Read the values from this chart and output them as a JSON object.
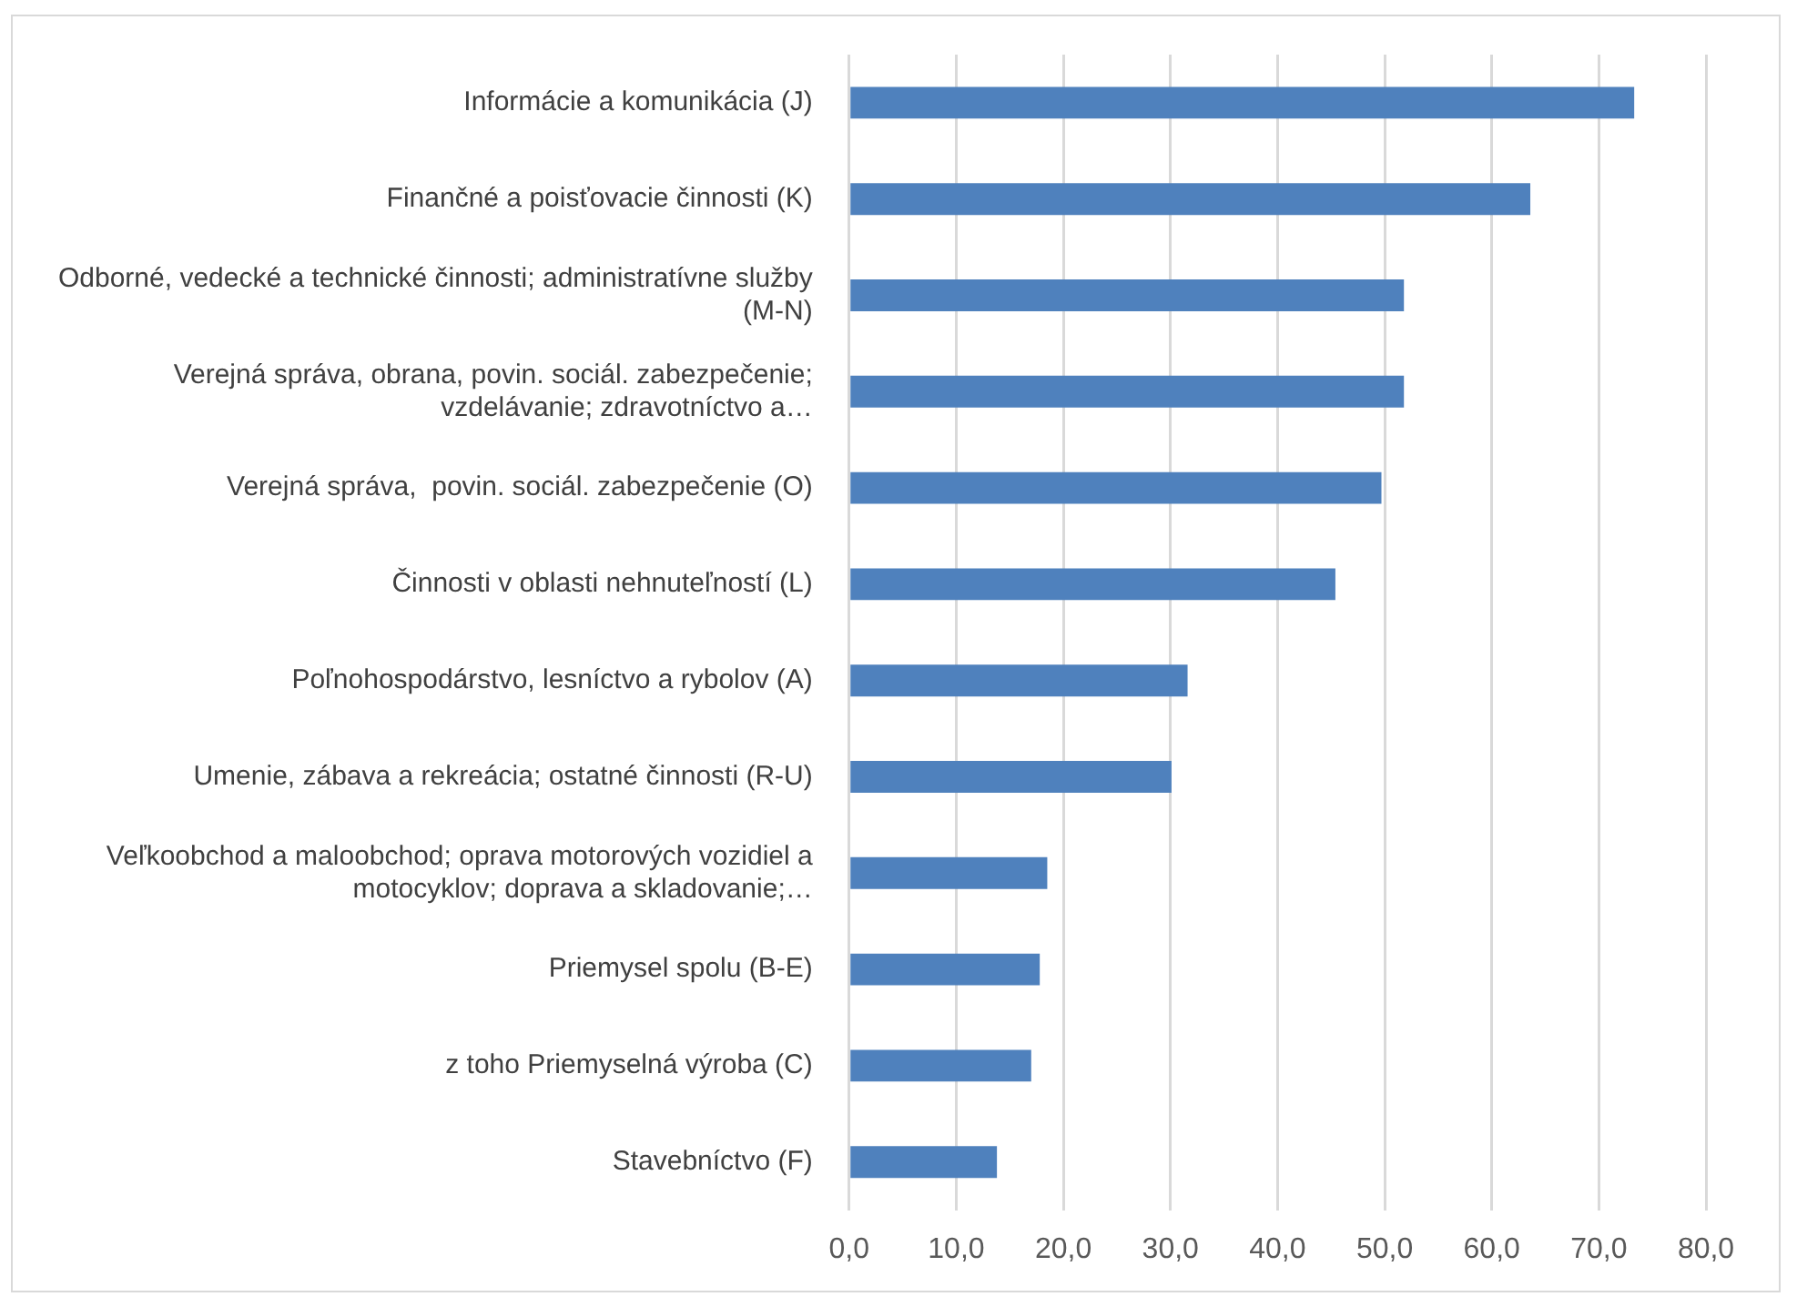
{
  "chart_data": {
    "type": "bar",
    "orientation": "horizontal",
    "categories": [
      "Informácie a komunikácia (J)",
      "Finančné a poisťovacie činnosti (K)",
      "Odborné, vedecké a technické činnosti; administratívne služby (M-N)",
      "Verejná správa, obrana, povin. sociál. zabezpečenie; vzdelávanie; zdravotníctvo a…",
      "Verejná správa,  povin. sociál. zabezpečenie (O)",
      "Činnosti v oblasti nehnuteľností (L)",
      "Poľnohospodárstvo, lesníctvo a rybolov (A)",
      "Umenie, zábava a rekreácia; ostatné činnosti (R-U)",
      "Veľkoobchod a maloobchod; oprava motorových vozidiel a motocyklov; doprava a skladovanie;…",
      "Priemysel spolu (B-E)",
      "z toho Priemyselná výroba (C)",
      "Stavebníctvo (F)"
    ],
    "values": [
      73.3,
      63.6,
      51.8,
      51.8,
      49.7,
      45.4,
      31.6,
      30.1,
      18.5,
      17.8,
      17.0,
      13.8
    ],
    "color": "#4f81bd",
    "xlim": [
      0,
      80
    ],
    "xticks": [
      {
        "value": 0,
        "label": "0,0"
      },
      {
        "value": 10,
        "label": "10,0"
      },
      {
        "value": 20,
        "label": "20,0"
      },
      {
        "value": 30,
        "label": "30,0"
      },
      {
        "value": 40,
        "label": "40,0"
      },
      {
        "value": 50,
        "label": "50,0"
      },
      {
        "value": 60,
        "label": "60,0"
      },
      {
        "value": 70,
        "label": "70,0"
      },
      {
        "value": 80,
        "label": "80,0"
      }
    ],
    "grid": "x",
    "legend": false
  }
}
